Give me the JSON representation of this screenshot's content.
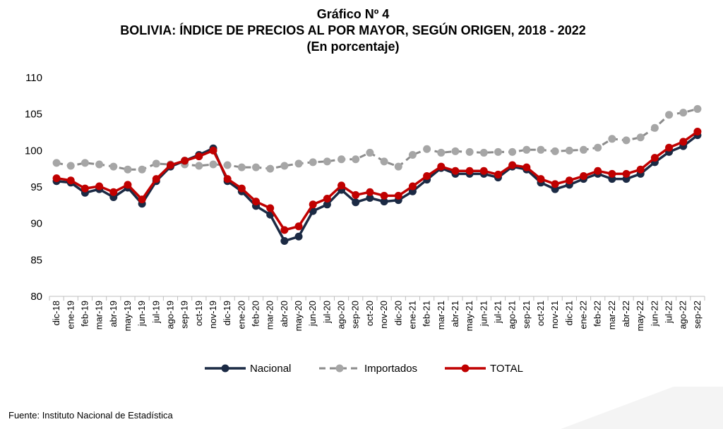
{
  "header": {
    "title": "Gráfico Nº 4",
    "subtitle": "BOLIVIA: ÍNDICE DE PRECIOS AL POR MAYOR, SEGÚN ORIGEN, 2018 - 2022",
    "unit": "(En porcentaje)"
  },
  "footer": {
    "source": "Fuente: Instituto Nacional de Estadística"
  },
  "chart_data": {
    "type": "line",
    "title": "BOLIVIA: ÍNDICE DE PRECIOS AL POR MAYOR, SEGÚN ORIGEN, 2018 - 2022",
    "xlabel": "",
    "ylabel": "",
    "ylim": [
      80,
      110
    ],
    "yticks": [
      80,
      85,
      90,
      95,
      100,
      105,
      110
    ],
    "grid": false,
    "legend": "bottom",
    "categories": [
      "dic-18",
      "ene-19",
      "feb-19",
      "mar-19",
      "abr-19",
      "may-19",
      "jun-19",
      "jul-19",
      "ago-19",
      "sep-19",
      "oct-19",
      "nov-19",
      "dic-19",
      "ene-20",
      "feb-20",
      "mar-20",
      "abr-20",
      "may-20",
      "jun-20",
      "jul-20",
      "ago-20",
      "sep-20",
      "oct-20",
      "nov-20",
      "dic-20",
      "ene-21",
      "feb-21",
      "mar-21",
      "abr-21",
      "may-21",
      "jun-21",
      "jul-21",
      "ago-21",
      "sep-21",
      "oct-21",
      "nov-21",
      "dic-21",
      "ene-22",
      "feb-22",
      "mar-22",
      "abr-22",
      "may-22",
      "jun-22",
      "jul-22",
      "ago-22",
      "sep-22"
    ],
    "series": [
      {
        "name": "Nacional",
        "color": "#1b2a44",
        "style": "solid",
        "values": [
          95.8,
          95.6,
          94.2,
          94.7,
          93.6,
          94.9,
          92.7,
          95.8,
          97.8,
          98.6,
          99.4,
          100.3,
          95.8,
          94.4,
          92.4,
          91.2,
          87.6,
          88.2,
          91.7,
          92.6,
          94.6,
          92.9,
          93.5,
          93.0,
          93.2,
          94.4,
          96.0,
          97.6,
          96.8,
          96.8,
          96.8,
          96.3,
          97.8,
          97.4,
          95.6,
          94.7,
          95.3,
          96.1,
          96.8,
          96.1,
          96.1,
          96.8,
          98.4,
          99.8,
          100.6,
          102.1
        ]
      },
      {
        "name": "Importados",
        "color": "#8c8c8c",
        "style": "dashed",
        "values": [
          98.3,
          97.9,
          98.3,
          98.1,
          97.8,
          97.4,
          97.4,
          98.2,
          98.1,
          98.1,
          97.9,
          98.1,
          98.0,
          97.7,
          97.7,
          97.5,
          97.9,
          98.2,
          98.4,
          98.5,
          98.8,
          98.8,
          99.7,
          98.5,
          97.8,
          99.4,
          100.2,
          99.7,
          99.9,
          99.8,
          99.7,
          99.8,
          99.8,
          100.1,
          100.1,
          99.9,
          100.0,
          100.1,
          100.4,
          101.6,
          101.4,
          101.8,
          103.1,
          104.9,
          105.2,
          105.7
        ]
      },
      {
        "name": "TOTAL",
        "color": "#c00000",
        "style": "solid",
        "values": [
          96.2,
          95.9,
          94.8,
          95.1,
          94.3,
          95.3,
          93.3,
          96.1,
          98.0,
          98.6,
          99.2,
          100.0,
          96.1,
          94.8,
          93.0,
          92.1,
          89.1,
          89.6,
          92.6,
          93.4,
          95.2,
          93.9,
          94.3,
          93.8,
          93.8,
          95.1,
          96.5,
          97.8,
          97.2,
          97.2,
          97.2,
          96.7,
          98.0,
          97.7,
          96.1,
          95.4,
          95.9,
          96.5,
          97.2,
          96.8,
          96.8,
          97.4,
          99.0,
          100.4,
          101.2,
          102.6
        ]
      }
    ]
  }
}
